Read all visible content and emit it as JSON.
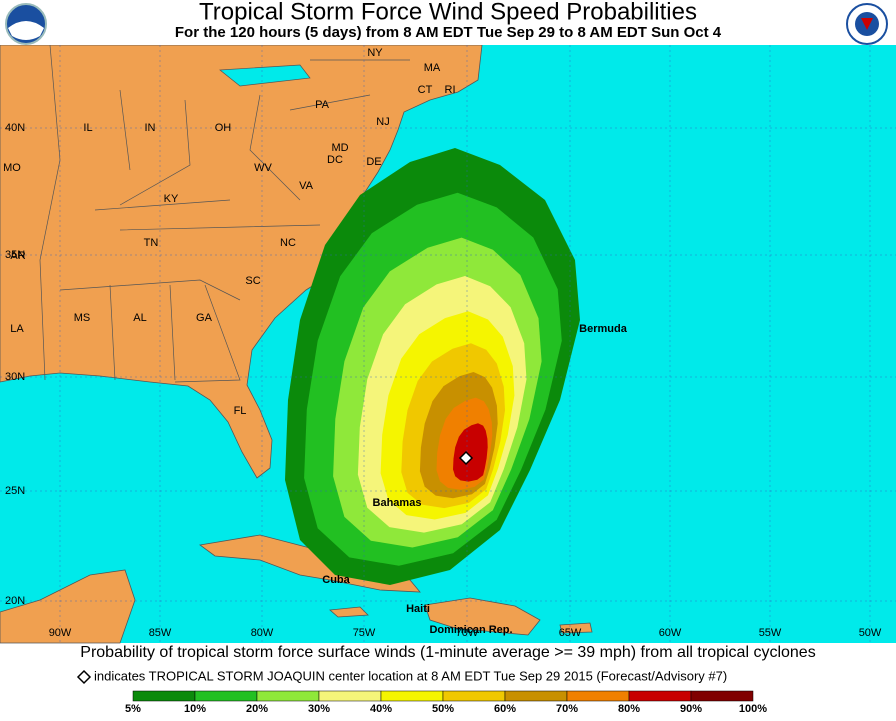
{
  "header": {
    "title": "Tropical Storm Force Wind Speed Probabilities",
    "subtitle": "For the 120 hours (5 days) from 8 AM EDT Tue Sep 29 to 8 AM EDT Sun Oct 4"
  },
  "map": {
    "states": [
      "NY",
      "MA",
      "CT",
      "RI",
      "PA",
      "NJ",
      "IL",
      "IN",
      "OH",
      "MD",
      "DC",
      "DE",
      "WV",
      "MO",
      "VA",
      "KY",
      "NC",
      "TN",
      "AR",
      "SC",
      "MS",
      "AL",
      "GA",
      "LA",
      "FL"
    ],
    "places": [
      "Bermuda",
      "Bahamas",
      "Cuba",
      "Haiti",
      "Dominican Rep."
    ],
    "latitudes": [
      "40N",
      "35N",
      "30N",
      "25N",
      "20N"
    ],
    "longitudes": [
      "90W",
      "85W",
      "80W",
      "75W",
      "70W",
      "65W",
      "60W",
      "55W",
      "50W"
    ]
  },
  "footer": {
    "caption": "Probability of tropical storm force surface winds (1-minute average >= 39 mph) from all tropical cyclones",
    "note": "indicates TROPICAL STORM JOAQUIN center location at 8 AM EDT Tue Sep 29 2015 (Forecast/Advisory #7)"
  },
  "legend": {
    "labels": [
      "5%",
      "10%",
      "20%",
      "30%",
      "40%",
      "50%",
      "60%",
      "70%",
      "80%",
      "90%",
      "100%"
    ],
    "colors": [
      "#0b8a0b",
      "#22c022",
      "#8fe83a",
      "#f5f57a",
      "#f5f500",
      "#f0c800",
      "#c89000",
      "#f08000",
      "#c80000",
      "#800000"
    ]
  }
}
